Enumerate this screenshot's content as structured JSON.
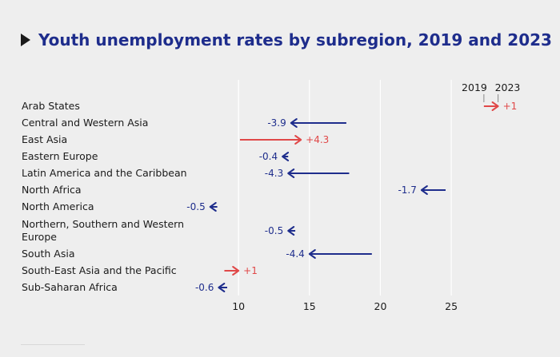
{
  "title": "Youth unemployment rates by subregion, 2019 and 2023",
  "colors": {
    "decrease": "#1e2d8c",
    "increase": "#e04848",
    "grid": "#ffffff",
    "title": "#1e2d8c"
  },
  "chart_data": {
    "type": "arrow",
    "title": "Youth unemployment rates by subregion, 2019 and 2023",
    "xlim": [
      7,
      29
    ],
    "xticks": [
      10,
      15,
      20,
      25
    ],
    "legend": {
      "from_label": "2019",
      "to_label": "2023",
      "placement": "top-right"
    },
    "series": [
      {
        "category": "Arab States",
        "from": 27.3,
        "to": 28.3,
        "label": "+1"
      },
      {
        "category": "Central and Western Asia",
        "from": 17.6,
        "to": 13.7,
        "label": "-3.9"
      },
      {
        "category": "East Asia",
        "from": 10.1,
        "to": 14.4,
        "label": "+4.3"
      },
      {
        "category": "Eastern Europe",
        "from": 13.5,
        "to": 13.1,
        "label": "-0.4"
      },
      {
        "category": "Latin America and the Caribbean",
        "from": 17.8,
        "to": 13.5,
        "label": "-4.3"
      },
      {
        "category": "North Africa",
        "from": 24.6,
        "to": 22.9,
        "label": "-1.7"
      },
      {
        "category": "North America",
        "from": 8.5,
        "to": 8.0,
        "label": "-0.5"
      },
      {
        "category": "Northern, Southern and Western Europe",
        "from": 14.0,
        "to": 13.5,
        "label": "-0.5"
      },
      {
        "category": "South Asia",
        "from": 19.4,
        "to": 15.0,
        "label": "-4.4"
      },
      {
        "category": "South-East Asia and the Pacific",
        "from": 9.0,
        "to": 10.0,
        "label": "+1"
      },
      {
        "category": "Sub-Saharan Africa",
        "from": 9.2,
        "to": 8.6,
        "label": "-0.6"
      }
    ]
  }
}
